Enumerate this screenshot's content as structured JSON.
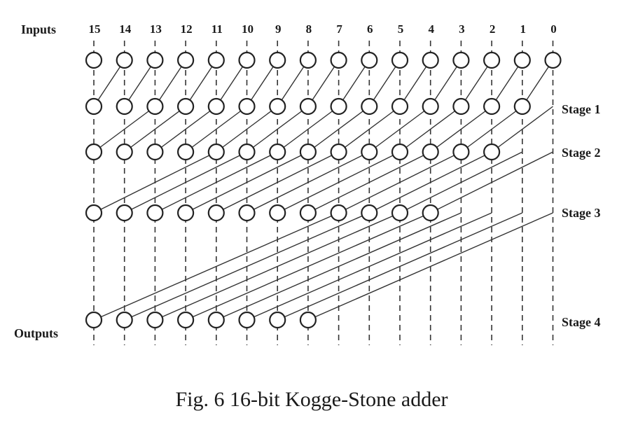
{
  "diagram": {
    "inputs_label": "Inputs",
    "outputs_label": "Outputs",
    "bit_labels": [
      "15",
      "14",
      "13",
      "12",
      "11",
      "10",
      "9",
      "8",
      "7",
      "6",
      "5",
      "4",
      "3",
      "2",
      "1",
      "0"
    ],
    "stages": [
      {
        "label": "Stage 1",
        "distance": 1
      },
      {
        "label": "Stage 2",
        "distance": 2
      },
      {
        "label": "Stage 3",
        "distance": 4
      },
      {
        "label": "Stage 4",
        "distance": 8
      }
    ],
    "caption": "Fig. 6 16-bit Kogge-Stone adder"
  }
}
